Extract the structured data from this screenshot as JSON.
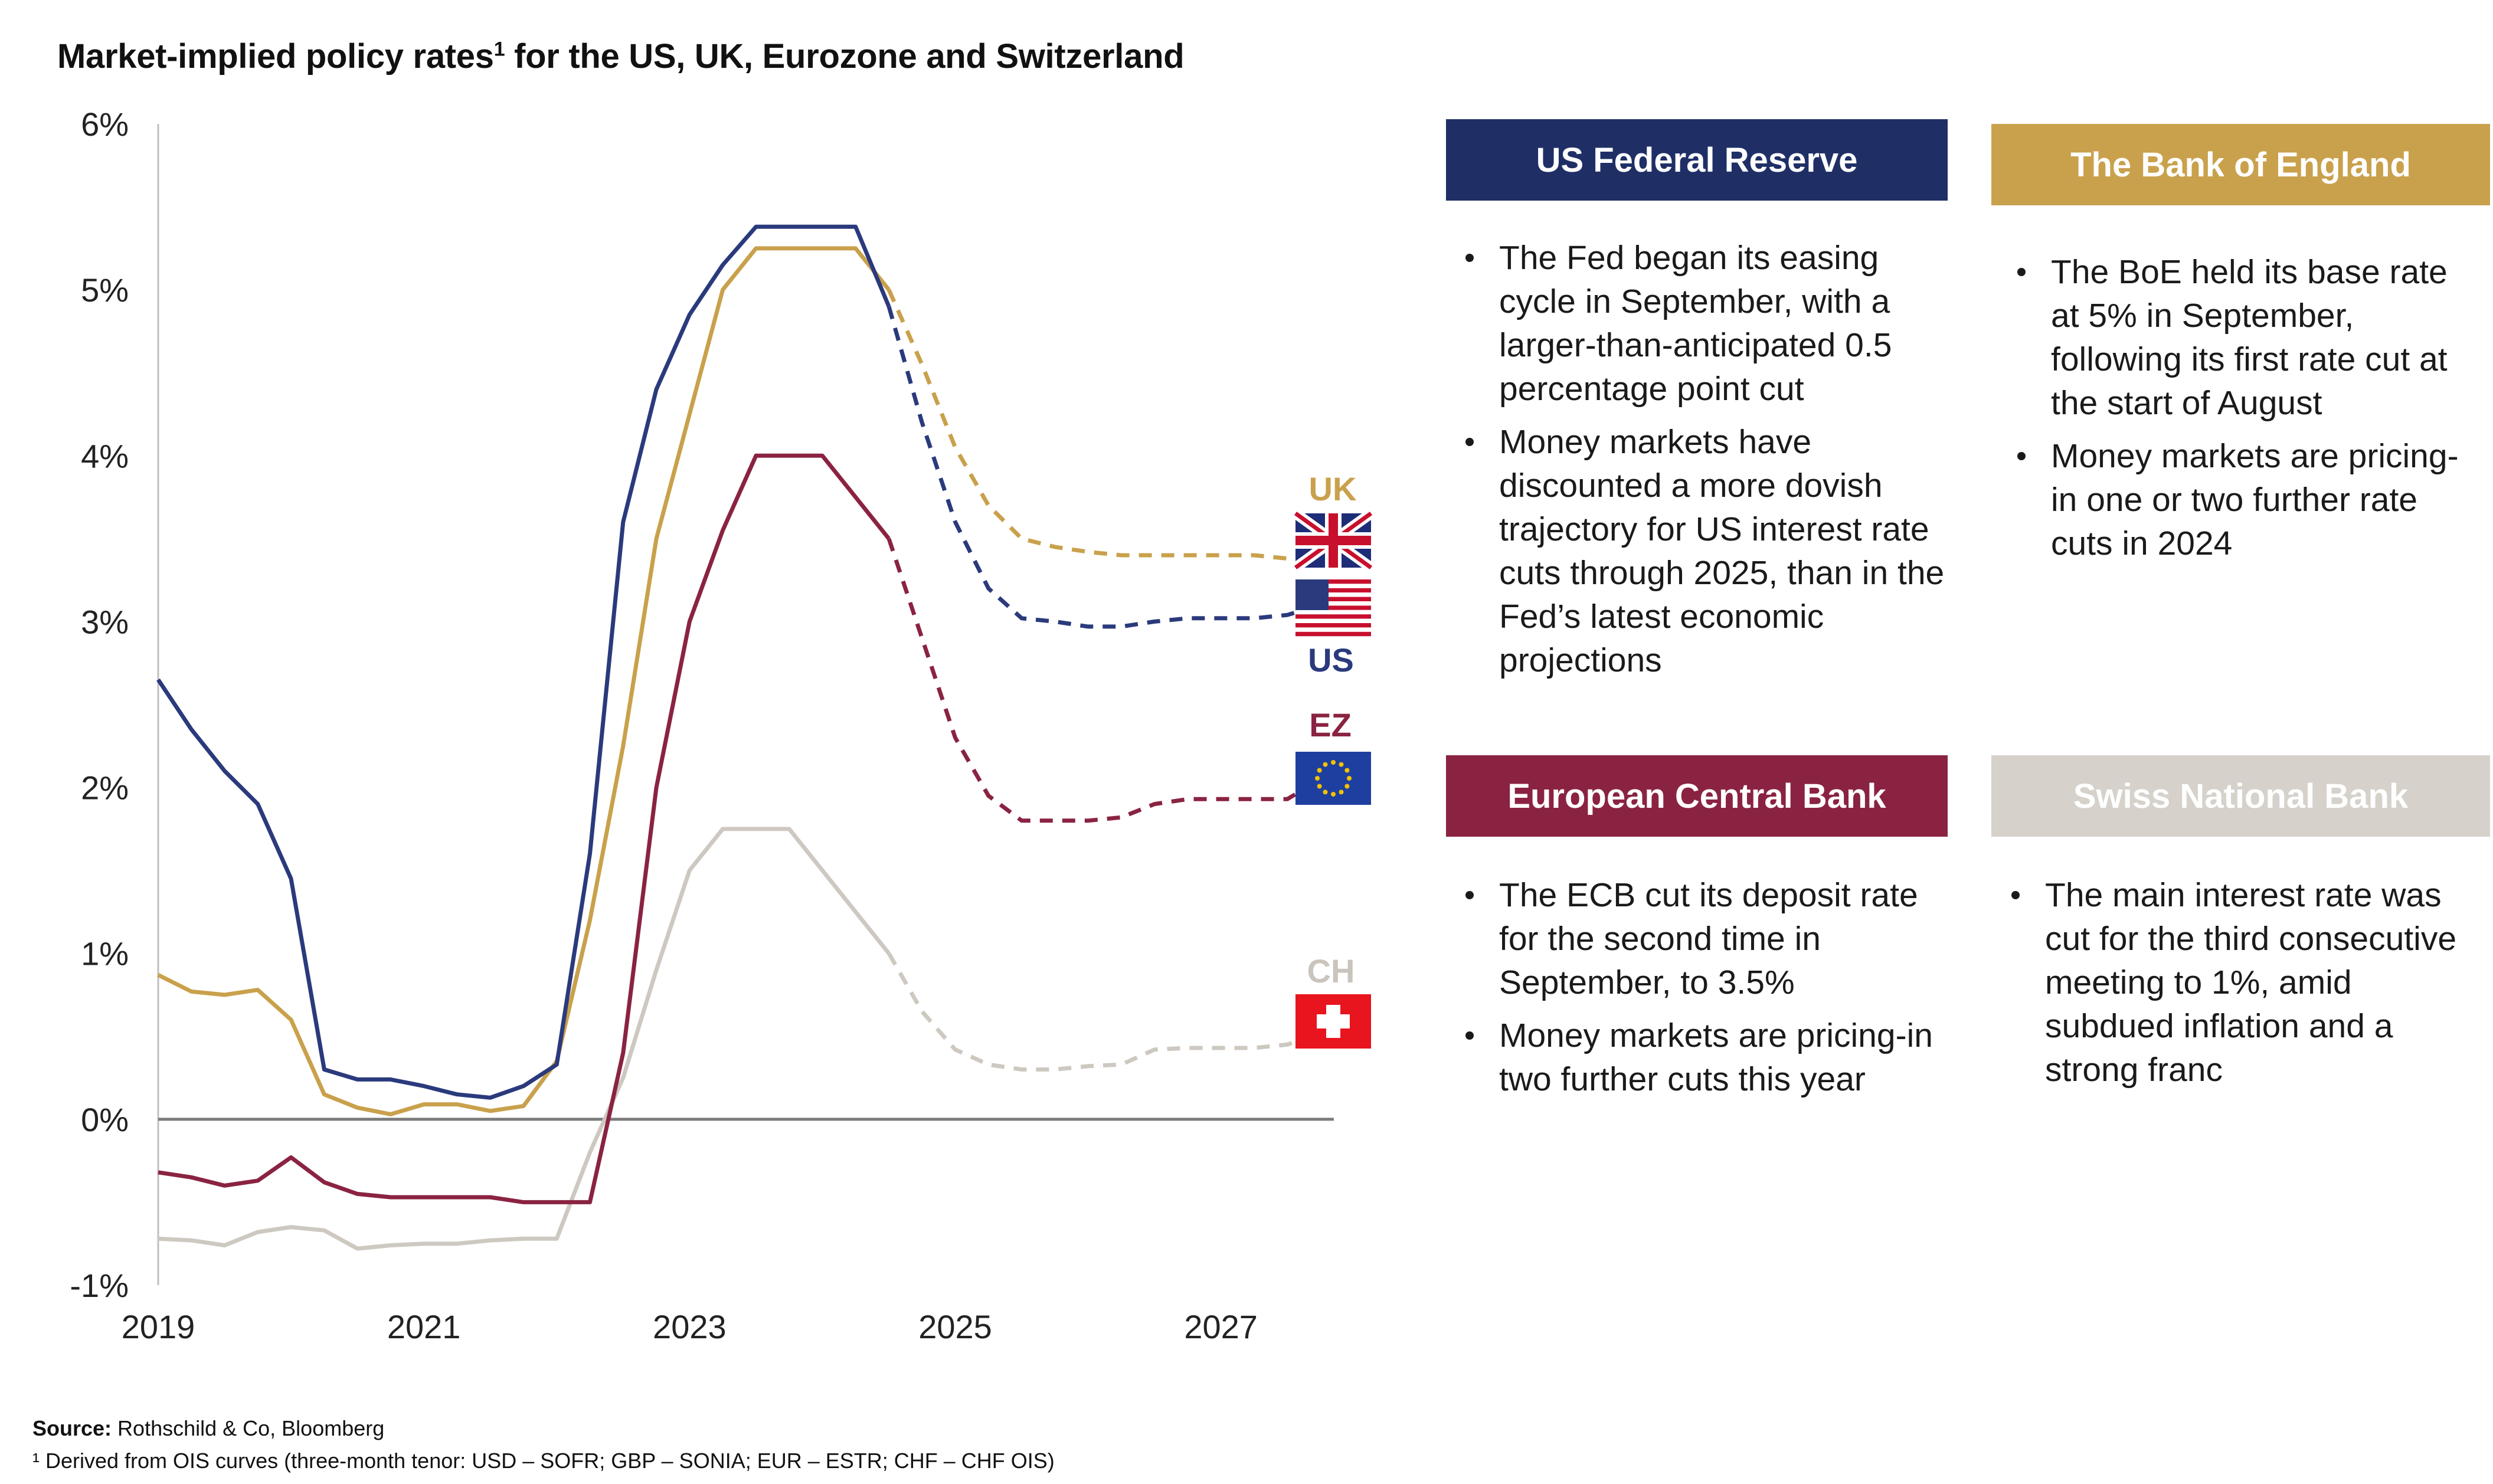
{
  "title": "Market-implied policy rates",
  "title_sup": "1",
  "title_rest": " for the US, UK, Eurozone and Switzerland",
  "chart_data": {
    "type": "line",
    "title": "Market-implied policy rates¹ for the US, UK, Eurozone and Switzerland",
    "xlim": [
      2019,
      2027.85
    ],
    "ylim": [
      -1,
      6
    ],
    "x_ticks": [
      "2019",
      "2021",
      "2023",
      "2025",
      "2027"
    ],
    "y_ticks": [
      "6%",
      "5%",
      "4%",
      "3%",
      "2%",
      "1%",
      "0%",
      "-1%"
    ],
    "grid": false,
    "forecast_start": 2024.6,
    "series": [
      {
        "name": "US",
        "color": "#2a3a7c",
        "x": [
          2019.0,
          2019.25,
          2019.5,
          2019.75,
          2020.0,
          2020.25,
          2020.5,
          2020.75,
          2021.0,
          2021.25,
          2021.5,
          2021.75,
          2022.0,
          2022.25,
          2022.5,
          2022.75,
          2023.0,
          2023.25,
          2023.5,
          2023.75,
          2024.0,
          2024.25,
          2024.5,
          2024.75,
          2025.0,
          2025.25,
          2025.5,
          2025.75,
          2026.0,
          2026.25,
          2026.5,
          2026.75,
          2027.0,
          2027.25,
          2027.5,
          2027.75
        ],
        "values": [
          2.65,
          2.35,
          2.1,
          1.9,
          1.45,
          0.3,
          0.24,
          0.24,
          0.2,
          0.15,
          0.13,
          0.2,
          0.33,
          1.6,
          3.6,
          4.4,
          4.85,
          5.15,
          5.38,
          5.38,
          5.38,
          5.38,
          4.9,
          4.2,
          3.6,
          3.2,
          3.02,
          3.0,
          2.97,
          2.97,
          3.0,
          3.02,
          3.02,
          3.02,
          3.04,
          3.1
        ]
      },
      {
        "name": "UK",
        "color": "#c9a14c",
        "x": [
          2019.0,
          2019.25,
          2019.5,
          2019.75,
          2020.0,
          2020.25,
          2020.5,
          2020.75,
          2021.0,
          2021.25,
          2021.5,
          2021.75,
          2022.0,
          2022.25,
          2022.5,
          2022.75,
          2023.0,
          2023.25,
          2023.5,
          2023.75,
          2024.0,
          2024.25,
          2024.5,
          2024.75,
          2025.0,
          2025.25,
          2025.5,
          2025.75,
          2026.0,
          2026.25,
          2026.5,
          2026.75,
          2027.0,
          2027.25,
          2027.5,
          2027.75
        ],
        "values": [
          0.87,
          0.77,
          0.75,
          0.78,
          0.6,
          0.15,
          0.07,
          0.03,
          0.09,
          0.09,
          0.05,
          0.08,
          0.35,
          1.2,
          2.25,
          3.5,
          4.25,
          5.0,
          5.25,
          5.25,
          5.25,
          5.25,
          5.0,
          4.55,
          4.05,
          3.7,
          3.5,
          3.45,
          3.42,
          3.4,
          3.4,
          3.4,
          3.4,
          3.4,
          3.38,
          3.36
        ]
      },
      {
        "name": "EZ",
        "color": "#8a2341",
        "x": [
          2019.0,
          2019.25,
          2019.5,
          2019.75,
          2020.0,
          2020.25,
          2020.5,
          2020.75,
          2021.0,
          2021.25,
          2021.5,
          2021.75,
          2022.0,
          2022.25,
          2022.5,
          2022.75,
          2023.0,
          2023.25,
          2023.5,
          2023.75,
          2024.0,
          2024.25,
          2024.5,
          2024.75,
          2025.0,
          2025.25,
          2025.5,
          2025.75,
          2026.0,
          2026.25,
          2026.5,
          2026.75,
          2027.0,
          2027.25,
          2027.5,
          2027.75
        ],
        "values": [
          -0.32,
          -0.35,
          -0.4,
          -0.37,
          -0.23,
          -0.38,
          -0.45,
          -0.47,
          -0.47,
          -0.47,
          -0.47,
          -0.5,
          -0.5,
          -0.5,
          0.4,
          2.0,
          3.0,
          3.55,
          4.0,
          4.0,
          4.0,
          3.75,
          3.5,
          2.9,
          2.3,
          1.95,
          1.8,
          1.8,
          1.8,
          1.82,
          1.9,
          1.93,
          1.93,
          1.93,
          1.93,
          2.05
        ]
      },
      {
        "name": "CH",
        "color": "#cdc8c0",
        "x": [
          2019.0,
          2019.25,
          2019.5,
          2019.75,
          2020.0,
          2020.25,
          2020.5,
          2020.75,
          2021.0,
          2021.25,
          2021.5,
          2021.75,
          2022.0,
          2022.25,
          2022.5,
          2022.75,
          2023.0,
          2023.25,
          2023.5,
          2023.75,
          2024.0,
          2024.25,
          2024.5,
          2024.75,
          2025.0,
          2025.25,
          2025.5,
          2025.75,
          2026.0,
          2026.25,
          2026.5,
          2026.75,
          2027.0,
          2027.25,
          2027.5,
          2027.75
        ],
        "values": [
          -0.72,
          -0.73,
          -0.76,
          -0.68,
          -0.65,
          -0.67,
          -0.78,
          -0.76,
          -0.75,
          -0.75,
          -0.73,
          -0.72,
          -0.72,
          -0.2,
          0.25,
          0.9,
          1.5,
          1.75,
          1.75,
          1.75,
          1.5,
          1.25,
          1.0,
          0.65,
          0.42,
          0.33,
          0.3,
          0.3,
          0.32,
          0.33,
          0.42,
          0.43,
          0.43,
          0.43,
          0.45,
          0.52
        ]
      }
    ],
    "end_labels": [
      {
        "name": "UK",
        "text": "UK",
        "color": "#c9a14c"
      },
      {
        "name": "US",
        "text": "US",
        "color": "#2a3a7c"
      },
      {
        "name": "EZ",
        "text": "EZ",
        "color": "#8a2341"
      },
      {
        "name": "CH",
        "text": "CH",
        "color": "#c9c4bc"
      }
    ]
  },
  "cards": {
    "fed": {
      "title": "US Federal Reserve",
      "color": "#1f2f66",
      "bullets": [
        "The Fed began its easing cycle in September, with a larger-than-anticipated 0.5 percentage point cut",
        "Money markets have discounted a more dovish trajectory for US interest rate cuts through 2025, than in the Fed’s latest economic projections"
      ]
    },
    "boe": {
      "title": "The Bank of England",
      "color": "#c9a14c",
      "bullets": [
        "The BoE held its base rate at 5% in September, following its first rate cut at the start of August",
        "Money markets are pricing-in one or two further rate cuts in 2024"
      ]
    },
    "ecb": {
      "title": "European Central Bank",
      "color": "#8a2341",
      "bullets": [
        "The ECB cut its deposit rate for the second time in September, to 3.5%",
        "Money markets are pricing-in two further cuts this year"
      ]
    },
    "snb": {
      "title": "Swiss National Bank",
      "color": "#d6d2cb",
      "bullets": [
        "The main interest rate was cut for the third consecutive meeting to 1%, amid subdued inflation and a strong franc"
      ]
    }
  },
  "source": {
    "label": "Source:",
    "text": " Rothschild & Co, Bloomberg",
    "footnote": "¹ Derived from OIS curves (three-month tenor: USD – SOFR; GBP – SONIA; EUR – ESTR; CHF – CHF OIS)"
  }
}
